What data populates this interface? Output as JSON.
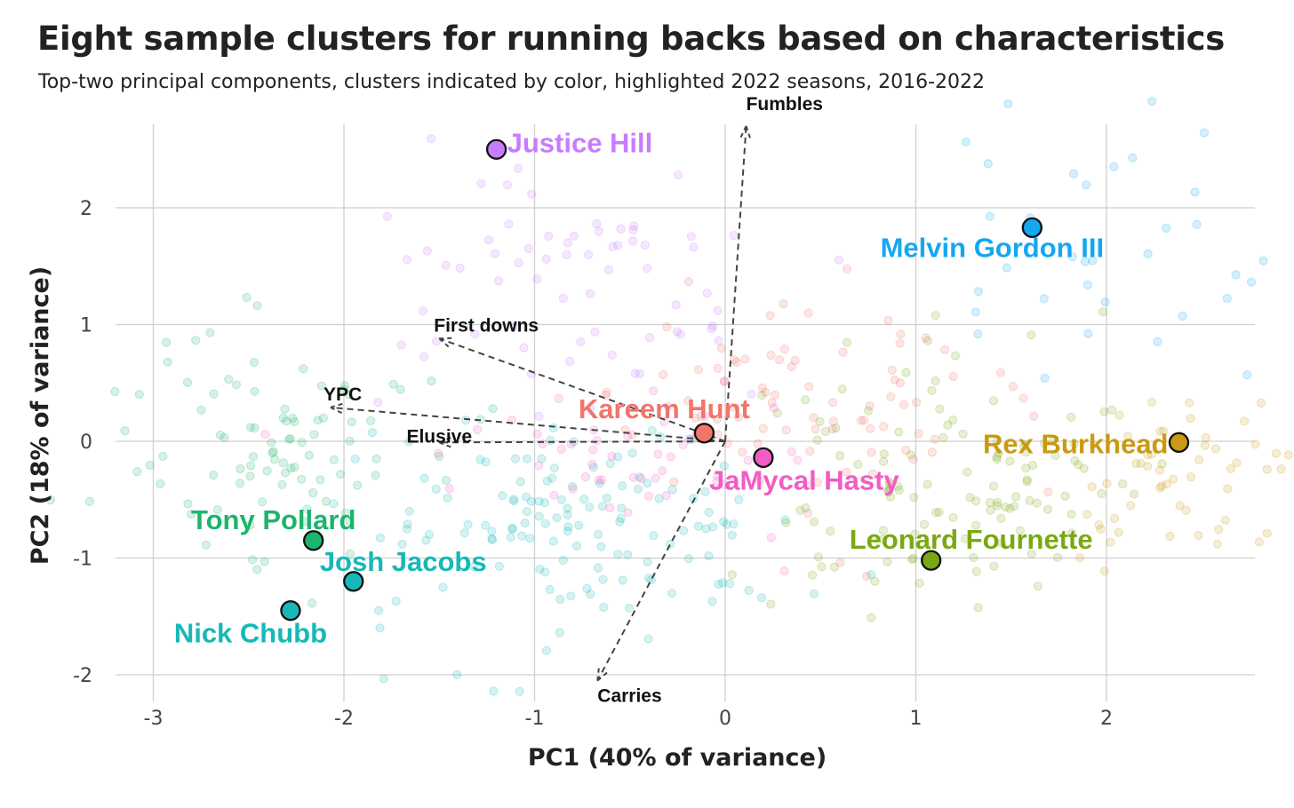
{
  "chart_data": {
    "type": "scatter",
    "title": "Eight sample clusters for running backs based on characteristics",
    "subtitle": "Top-two principal components, clusters indicated by color, highlighted 2022 seasons, 2016-2022",
    "xlabel": "PC1 (40% of variance)",
    "ylabel": "PC2 (18% of variance)",
    "xlim": [
      -3.3,
      2.8
    ],
    "ylim": [
      -2.2,
      2.75
    ],
    "x_ticks": [
      -3,
      -2,
      -1,
      0,
      1,
      2
    ],
    "y_ticks": [
      -2,
      -1,
      0,
      1,
      2
    ],
    "grid": true,
    "legend": "none",
    "cluster_colors": {
      "green": "#1bb56b",
      "teal": "#17b8b8",
      "purple": "#c77cff",
      "blue": "#14a8f0",
      "salmon": "#f0756b",
      "pink": "#f25cc4",
      "olive": "#7aa812",
      "gold": "#c99a12"
    },
    "highlighted": [
      {
        "name": "Justice Hill",
        "x": -1.2,
        "y": 2.5,
        "cluster": "purple"
      },
      {
        "name": "Melvin Gordon III",
        "x": 1.61,
        "y": 1.83,
        "cluster": "blue"
      },
      {
        "name": "Kareem Hunt",
        "x": -0.11,
        "y": 0.07,
        "cluster": "salmon"
      },
      {
        "name": "JaMycal Hasty",
        "x": 0.2,
        "y": -0.14,
        "cluster": "pink"
      },
      {
        "name": "Rex Burkhead",
        "x": 2.38,
        "y": -0.01,
        "cluster": "gold"
      },
      {
        "name": "Leonard Fournette",
        "x": 1.08,
        "y": -1.02,
        "cluster": "olive"
      },
      {
        "name": "Tony Pollard",
        "x": -2.16,
        "y": -0.85,
        "cluster": "green"
      },
      {
        "name": "Josh Jacobs",
        "x": -1.95,
        "y": -1.2,
        "cluster": "teal"
      },
      {
        "name": "Nick Chubb",
        "x": -2.28,
        "y": -1.45,
        "cluster": "teal"
      }
    ],
    "loadings": [
      {
        "name": "Fumbles",
        "x": 0.11,
        "y": 2.7
      },
      {
        "name": "First downs",
        "x": -1.5,
        "y": 0.88
      },
      {
        "name": "YPC",
        "x": -2.07,
        "y": 0.29
      },
      {
        "name": "Elusive",
        "x": -1.5,
        "y": -0.01
      },
      {
        "name": "Carries",
        "x": -0.67,
        "y": -2.05
      }
    ]
  }
}
